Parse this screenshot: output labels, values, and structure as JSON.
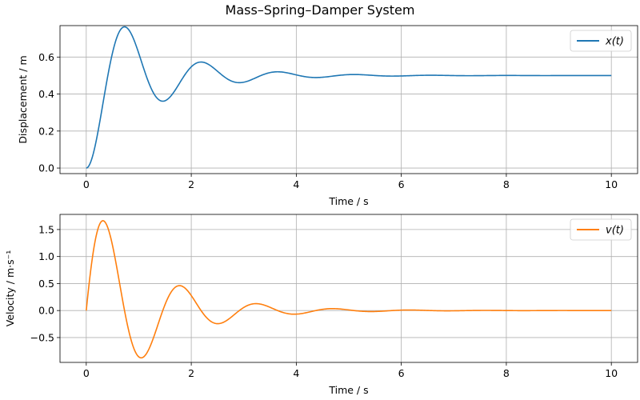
{
  "figure": {
    "title": "Mass–Spring–Damper System"
  },
  "chart_data": [
    {
      "type": "line",
      "xlabel": "Time / s",
      "ylabel": "Displacement / m",
      "xlim": [
        -0.5,
        10.5
      ],
      "ylim": [
        -0.03,
        0.77
      ],
      "xticks": [
        0,
        2,
        4,
        6,
        8,
        10
      ],
      "xtick_labels": [
        "0",
        "2",
        "4",
        "6",
        "8",
        "10"
      ],
      "yticks": [
        0.0,
        0.2,
        0.4,
        0.6
      ],
      "ytick_labels": [
        "0.0",
        "0.2",
        "0.4",
        "0.6"
      ],
      "grid": true,
      "legend": "top-right",
      "series": [
        {
          "name": "x(t)",
          "color": "#1f77b4",
          "model": {
            "steady": 0.5,
            "zeta": 0.2,
            "omega_n": 4.4,
            "start": "displacement-from-rest"
          },
          "x_range": [
            0,
            10
          ]
        }
      ]
    },
    {
      "type": "line",
      "xlabel": "Time / s",
      "ylabel": "Velocity / m·s⁻¹",
      "xlim": [
        -0.5,
        10.5
      ],
      "ylim": [
        -0.96,
        1.78
      ],
      "xticks": [
        0,
        2,
        4,
        6,
        8,
        10
      ],
      "xtick_labels": [
        "0",
        "2",
        "4",
        "6",
        "8",
        "10"
      ],
      "yticks": [
        -0.5,
        0.0,
        0.5,
        1.0,
        1.5
      ],
      "ytick_labels": [
        "−0.5",
        "0.0",
        "0.5",
        "1.0",
        "1.5"
      ],
      "grid": true,
      "legend": "top-right",
      "series": [
        {
          "name": "v(t)",
          "color": "#ff7f0e",
          "model": {
            "steady": 0.5,
            "zeta": 0.2,
            "omega_n": 4.4,
            "start": "velocity-from-rest"
          },
          "x_range": [
            0,
            10
          ]
        }
      ]
    }
  ]
}
